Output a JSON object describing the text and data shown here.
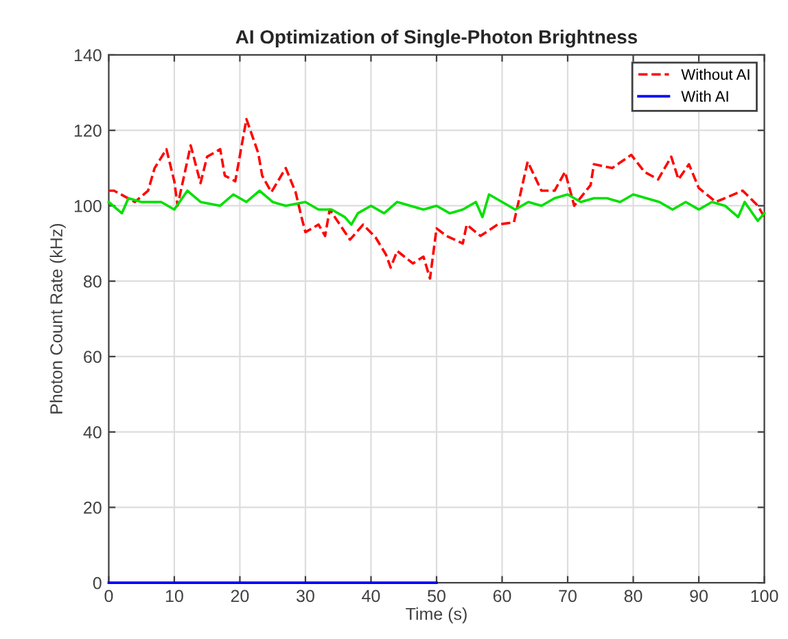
{
  "chart_data": {
    "type": "line",
    "title": "AI Optimization of Single-Photon Brightness",
    "xlabel": "Time (s)",
    "ylabel": "Photon Count Rate (kHz)",
    "xlim": [
      0,
      100
    ],
    "xticks": [
      0,
      10,
      20,
      30,
      40,
      50,
      60,
      70,
      80,
      90,
      100
    ],
    "ylim": [
      0,
      140
    ],
    "yticks": [
      0,
      20,
      40,
      60,
      80,
      100,
      120,
      140
    ],
    "grid": true,
    "legend": "top right",
    "series": [
      {
        "name": "Without AI",
        "color": "#ff0000",
        "line_style": "dashed",
        "x": [
          0,
          0.8,
          4,
          6,
          7,
          8.8,
          10,
          10.5,
          12.5,
          14,
          15,
          17,
          17.7,
          19.3,
          21,
          22.8,
          23.4,
          24.8,
          27,
          28.5,
          29.4,
          30,
          32,
          33,
          33.7,
          36.8,
          38.8,
          40.7,
          42.3,
          43,
          44,
          46.4,
          48,
          49,
          50,
          51.5,
          54,
          54.6,
          56.7,
          59.3,
          61.8,
          63.9,
          66,
          68,
          69.6,
          71,
          73.5,
          74,
          76.8,
          79.7,
          81.7,
          83.8,
          85.8,
          86.9,
          88.5,
          90,
          92.6,
          96.7,
          99,
          100
        ],
        "values": [
          104,
          104,
          101,
          104,
          110,
          115,
          106.5,
          100,
          116,
          106,
          113,
          115,
          108,
          106.5,
          123,
          114,
          108,
          103.6,
          110,
          103.6,
          97,
          93,
          95,
          92,
          99,
          91,
          95,
          91.6,
          87,
          83.6,
          88,
          84.7,
          86.5,
          80.7,
          94,
          92,
          90,
          95,
          92,
          95,
          95.6,
          111.7,
          104,
          104,
          109,
          100,
          105.5,
          111,
          110,
          113.5,
          109,
          107,
          113,
          107,
          111,
          104.7,
          101,
          104,
          100,
          97
        ]
      },
      {
        "name": "With AI",
        "color": "#0000ff",
        "line_style": "solid",
        "x": [
          0,
          50
        ],
        "values": [
          0,
          0
        ]
      },
      {
        "color": "#00e000",
        "line_style": "solid",
        "x": [
          0,
          2,
          3,
          5,
          8,
          10,
          12,
          14,
          17,
          19,
          21,
          23,
          25,
          27,
          30,
          32,
          34,
          36,
          37,
          38,
          40,
          42,
          44,
          46,
          48,
          50,
          52,
          54,
          56,
          57,
          58,
          60,
          62,
          64,
          66,
          68,
          70,
          72,
          74,
          76,
          78,
          80,
          82,
          84,
          86,
          88,
          90,
          92,
          94,
          96,
          97,
          99,
          100
        ],
        "values": [
          101,
          98,
          102,
          101,
          101,
          99,
          104,
          101,
          100,
          103,
          101,
          104,
          101,
          100,
          101,
          99,
          99,
          97,
          95,
          98,
          100,
          98,
          101,
          100,
          99,
          100,
          98,
          99,
          101,
          97,
          103,
          101,
          99,
          101,
          100,
          102,
          103,
          101,
          102,
          102,
          101,
          103,
          102,
          101,
          99,
          101,
          99,
          101,
          100,
          97,
          101,
          96,
          98
        ]
      }
    ]
  }
}
